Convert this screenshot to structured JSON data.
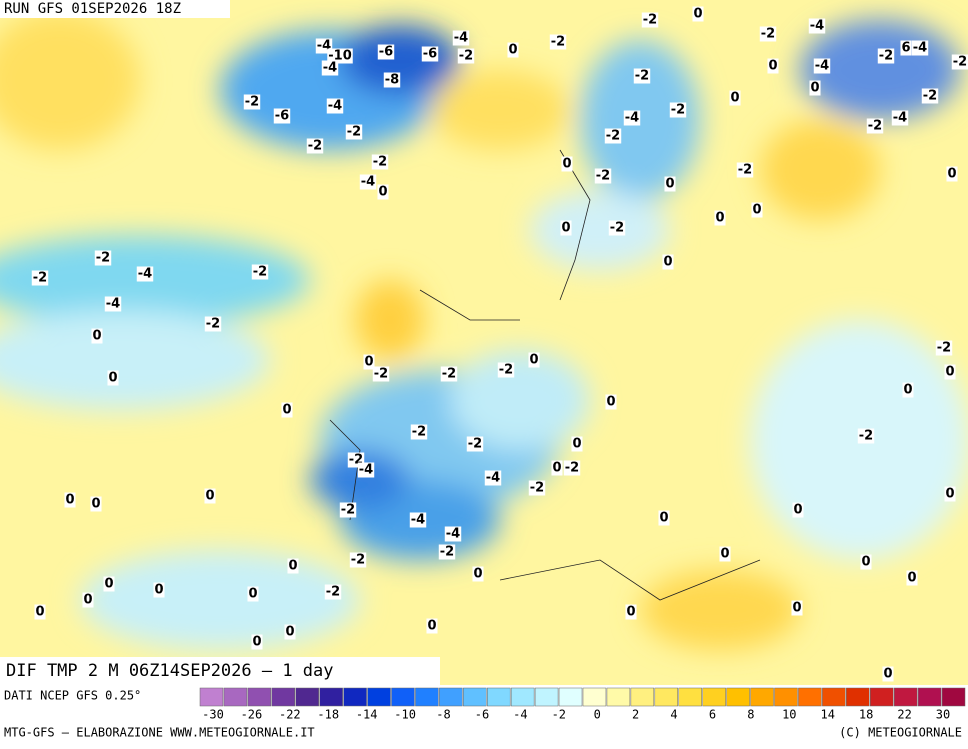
{
  "header": {
    "run": "RUN GFS 01SEP2026 18Z"
  },
  "map": {
    "labels": [
      -2,
      0,
      -4,
      -2,
      -4,
      -10,
      -6,
      -6,
      -4,
      -2,
      0,
      -2,
      -4,
      -8,
      -2,
      -6,
      -4,
      -2,
      -2,
      -2,
      -4,
      0,
      -2,
      0,
      -4,
      -2,
      -2,
      0,
      -2,
      0,
      -2,
      0,
      0,
      -2,
      0,
      0,
      -2,
      -2,
      -4,
      -2,
      -4,
      -2,
      0,
      0,
      0,
      -2,
      -2,
      -2,
      0,
      0,
      0,
      -2,
      -2,
      0,
      -2,
      -4,
      -4,
      0,
      -2,
      -2,
      0,
      0,
      0,
      -2,
      -4,
      -4,
      -2,
      -2,
      0,
      0,
      0,
      0,
      0,
      -2,
      0,
      0,
      0,
      0,
      0,
      0,
      0,
      0,
      0,
      0,
      0,
      0,
      0,
      -2,
      0,
      -2,
      0,
      -2,
      -4,
      -2,
      0,
      0,
      -4,
      -2,
      6,
      -4,
      -2,
      0,
      0
    ]
  },
  "title_bar": {
    "text": "DIF TMP 2 M 06Z14SEP2026 — 1 day"
  },
  "legend": {
    "source": "DATI NCEP GFS 0.25°",
    "colors": [
      "#c080d0",
      "#a868c0",
      "#9050b0",
      "#7038a0",
      "#502890",
      "#3020a0",
      "#1028c0",
      "#0040e0",
      "#1060f8",
      "#2080ff",
      "#40a0ff",
      "#60c0ff",
      "#80d8ff",
      "#a0e8ff",
      "#c0f4ff",
      "#e0ffff",
      "#ffffd0",
      "#fffaa8",
      "#fff080",
      "#ffe860",
      "#ffe040",
      "#ffd020",
      "#ffc000",
      "#ffa800",
      "#ff9000",
      "#ff7000",
      "#f05000",
      "#e03000",
      "#d02020",
      "#c01840",
      "#b01050",
      "#a00840"
    ],
    "ticks": [
      -30,
      -26,
      -22,
      -18,
      -14,
      -10,
      -8,
      -6,
      -4,
      -2,
      0,
      2,
      4,
      6,
      8,
      10,
      14,
      18,
      22,
      30
    ]
  },
  "footer": {
    "left": "MTG-GFS — ELABORAZIONE WWW.METEOGIORNALE.IT",
    "right": "(C) METEOGIORNALE"
  }
}
